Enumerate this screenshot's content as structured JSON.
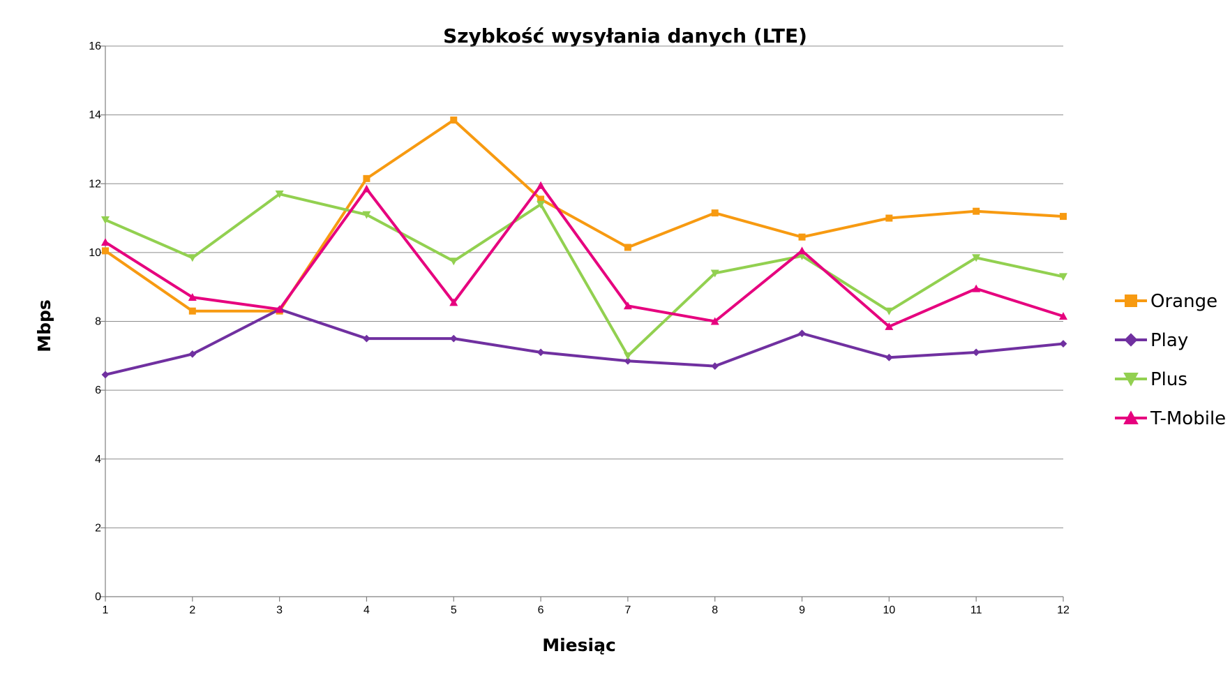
{
  "chart_data": {
    "type": "line",
    "title": "Szybkość wysyłania danych (LTE)",
    "xlabel": "Miesiąc",
    "ylabel": "Mbps",
    "x": [
      1,
      2,
      3,
      4,
      5,
      6,
      7,
      8,
      9,
      10,
      11,
      12
    ],
    "ylim": [
      0,
      16
    ],
    "yticks": [
      0,
      2,
      4,
      6,
      8,
      10,
      12,
      14,
      16
    ],
    "grid": true,
    "legend_position": "right",
    "series": [
      {
        "name": "Orange",
        "color": "#F79A11",
        "marker": "square",
        "values": [
          10.05,
          8.3,
          8.3,
          12.15,
          13.85,
          11.55,
          10.15,
          11.15,
          10.45,
          11.0,
          11.2,
          11.05
        ]
      },
      {
        "name": "Play",
        "color": "#7030A0",
        "marker": "diamond",
        "values": [
          6.45,
          7.05,
          8.35,
          7.5,
          7.5,
          7.1,
          6.85,
          6.7,
          7.65,
          6.95,
          7.1,
          7.35
        ]
      },
      {
        "name": "Plus",
        "color": "#92D050",
        "marker": "triangle-down",
        "values": [
          10.95,
          9.85,
          11.7,
          11.1,
          9.75,
          11.4,
          7.0,
          9.4,
          9.9,
          8.3,
          9.85,
          9.3
        ]
      },
      {
        "name": "T-Mobile",
        "color": "#E6007E",
        "marker": "triangle-up",
        "values": [
          10.3,
          8.7,
          8.35,
          11.85,
          8.55,
          11.95,
          8.45,
          8.0,
          10.05,
          7.85,
          8.95,
          8.15
        ]
      }
    ]
  }
}
